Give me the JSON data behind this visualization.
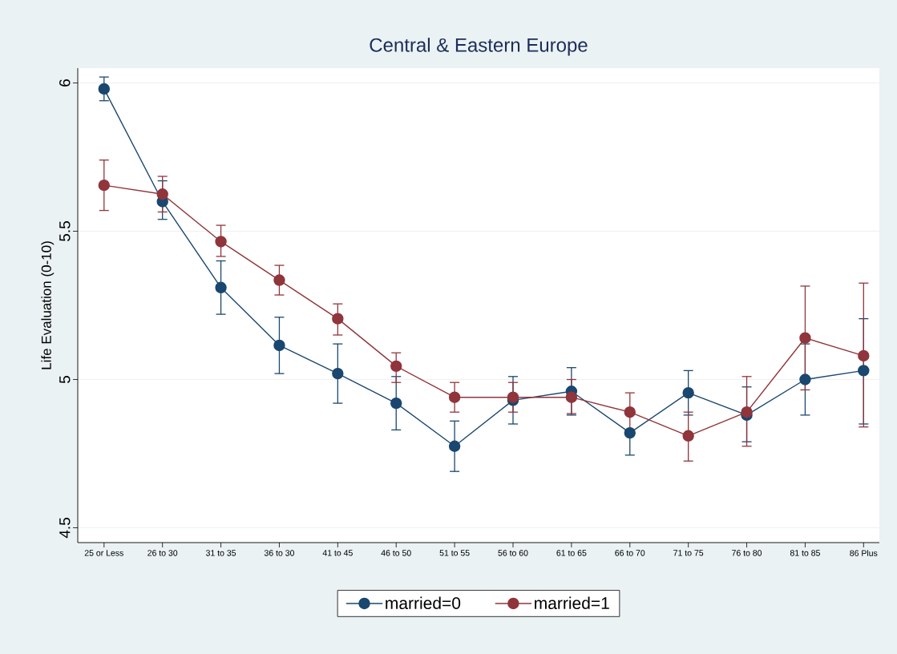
{
  "chart_data": {
    "type": "line",
    "title": "Central & Eastern Europe",
    "ylabel": "Life Evaluation (0-10)",
    "categories": [
      "25 or Less",
      "26 to 30",
      "31 to 35",
      "36 to 30",
      "41 to 45",
      "46 to 50",
      "51 to 55",
      "56 to 60",
      "61 to 65",
      "66 to 70",
      "71 to 75",
      "76 to 80",
      "81 to 85",
      "86 Plus"
    ],
    "series": [
      {
        "name": "married=0",
        "color": "#1a476f",
        "values": [
          5.98,
          5.6,
          5.31,
          5.115,
          5.02,
          4.92,
          4.775,
          4.93,
          4.96,
          4.82,
          4.955,
          4.88,
          5.0,
          5.03
        ],
        "errors": [
          [
            5.94,
            6.02
          ],
          [
            5.54,
            5.67
          ],
          [
            5.22,
            5.4
          ],
          [
            5.02,
            5.21
          ],
          [
            4.92,
            5.12
          ],
          [
            4.83,
            5.01
          ],
          [
            4.69,
            4.86
          ],
          [
            4.85,
            5.01
          ],
          [
            4.88,
            5.04
          ],
          [
            4.745,
            4.82
          ],
          [
            4.88,
            5.03
          ],
          [
            4.79,
            4.975
          ],
          [
            4.88,
            5.12
          ],
          [
            4.85,
            5.205
          ]
        ]
      },
      {
        "name": "married=1",
        "color": "#90353b",
        "values": [
          5.655,
          5.625,
          5.465,
          5.335,
          5.205,
          5.045,
          4.94,
          4.94,
          4.94,
          4.89,
          4.81,
          4.89,
          5.14,
          5.08
        ],
        "errors": [
          [
            5.57,
            5.74
          ],
          [
            5.565,
            5.685
          ],
          [
            5.415,
            5.52
          ],
          [
            5.285,
            5.385
          ],
          [
            5.15,
            5.255
          ],
          [
            4.99,
            5.09
          ],
          [
            4.89,
            4.99
          ],
          [
            4.89,
            4.99
          ],
          [
            4.885,
            5.0
          ],
          [
            4.83,
            4.955
          ],
          [
            4.725,
            4.89
          ],
          [
            4.775,
            5.01
          ],
          [
            4.965,
            5.315
          ],
          [
            4.84,
            5.325
          ]
        ]
      }
    ],
    "ylim": [
      4.45,
      6.05
    ],
    "yticks": [
      4.5,
      5,
      5.5,
      6
    ],
    "grid": "y",
    "legend": "bottom",
    "marker": "circle",
    "line_style": "solid"
  }
}
